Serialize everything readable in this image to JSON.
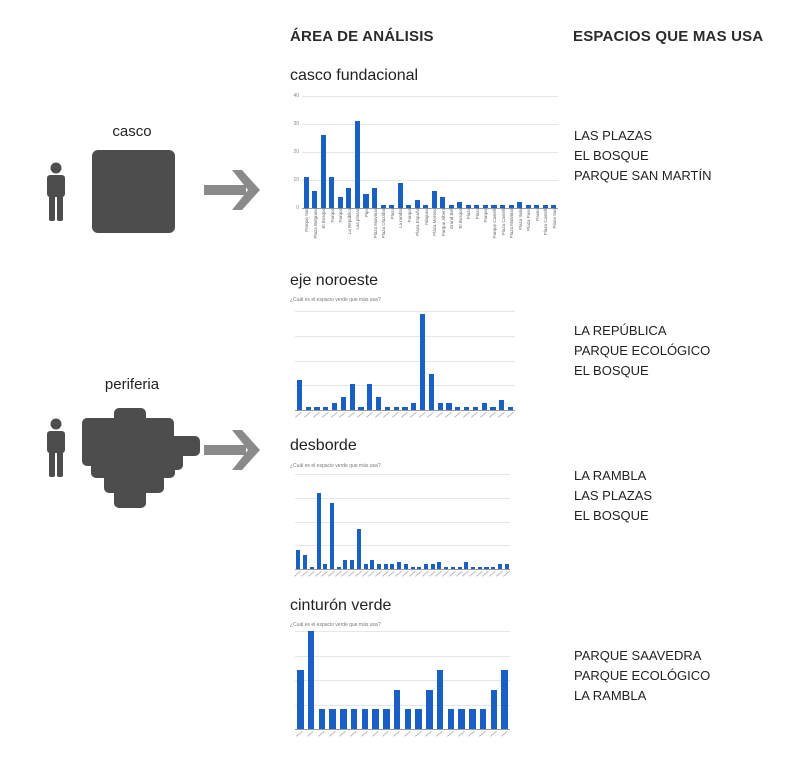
{
  "headers": {
    "area": "ÁREA DE ANÁLISIS",
    "spaces": "ESPACIOS QUE MAS USA"
  },
  "groups": [
    {
      "label": "casco",
      "icon": "person-icon",
      "shape": "square-block"
    },
    {
      "label": "periferia",
      "icon": "person-icon",
      "shape": "irregular-block"
    }
  ],
  "sections": [
    {
      "title": "casco fundacional",
      "chart_title": "",
      "top_spaces": [
        "LAS PLAZAS",
        "EL BOSQUE",
        "PARQUE SAN MARTÍN"
      ]
    },
    {
      "title": "eje noroeste",
      "chart_title": "¿Cuál es el espacio verde que más usa?",
      "top_spaces": [
        "LA REPÚBLICA",
        "PARQUE ECOLÓGICO",
        "EL BOSQUE"
      ]
    },
    {
      "title": "desborde",
      "chart_title": "¿Cuál es el espacio verde que más usa?",
      "top_spaces": [
        "LA RAMBLA",
        "LAS PLAZAS",
        "EL BOSQUE"
      ]
    },
    {
      "title": "cinturón verde",
      "chart_title": "¿Cuál es el espacio verde que más usa?",
      "top_spaces": [
        "PARQUE SAAVEDRA",
        "PARQUE ECOLÓGICO",
        "LA RAMBLA"
      ]
    }
  ],
  "colors": {
    "bar": "#1a5fc4",
    "shape": "#4d4d4d",
    "arrow": "#8a8a8a"
  },
  "chart_data": [
    {
      "type": "bar",
      "title": "casco fundacional",
      "categories": [
        "Parque San",
        "Plaza Belgrano",
        "El Bosque",
        "Parque",
        "Parque",
        "La República",
        "Las plazas",
        "Pipo",
        "Plaza Malvinas",
        "Plaza Olazábal",
        "Plaza",
        "La rambla",
        "Parque",
        "Plaza España",
        "Ninguno",
        "Plaza Moreno",
        "Parque Alberti",
        "Grand Bell",
        "El Bosque",
        "Plaza",
        "Plaza",
        "Parque",
        "Parque Castelli",
        "Plaza Castelli",
        "Plaza Malvinas",
        "Plaza Italia",
        "Plaza Paso",
        "Paseo",
        "Plaza Castelli",
        "Plaza San"
      ],
      "values": [
        11,
        6,
        26,
        11,
        4,
        7,
        31,
        5,
        7,
        1,
        1,
        9,
        1,
        3,
        1,
        6,
        4,
        1,
        2,
        1,
        1,
        1,
        1,
        1,
        1,
        2,
        1,
        1,
        1,
        1
      ],
      "yticks": [
        0,
        10,
        20,
        30,
        40
      ],
      "ylim": [
        0,
        40
      ],
      "grid": true
    },
    {
      "type": "bar",
      "title": "¿Cuál es el espacio verde que más usa?",
      "values": [
        9,
        1,
        1,
        1,
        2,
        4,
        8,
        1,
        8,
        4,
        1,
        1,
        1,
        2,
        29,
        11,
        2,
        2,
        1,
        1,
        1,
        2,
        1,
        3,
        1
      ],
      "ylim": [
        0,
        30
      ],
      "grid": true
    },
    {
      "type": "bar",
      "title": "¿Cuál es el espacio verde que más usa?",
      "values": [
        4,
        3,
        0.5,
        16,
        1,
        14,
        0.5,
        2,
        2,
        8.5,
        1,
        2,
        1,
        1,
        1,
        1.5,
        1,
        0.5,
        0.5,
        1,
        1,
        1.5,
        0.5,
        0.5,
        0.5,
        1.5,
        0.5,
        0.5,
        0.5,
        0.5,
        1,
        1
      ],
      "ylim": [
        0,
        20
      ],
      "grid": true
    },
    {
      "type": "bar",
      "title": "¿Cuál es el espacio verde que más usa?",
      "values": [
        3,
        5,
        1,
        1,
        1,
        1,
        1,
        1,
        1,
        2,
        1,
        1,
        2,
        3,
        1,
        1,
        1,
        1,
        2,
        3
      ],
      "ylim": [
        0,
        5
      ],
      "grid": true
    }
  ]
}
